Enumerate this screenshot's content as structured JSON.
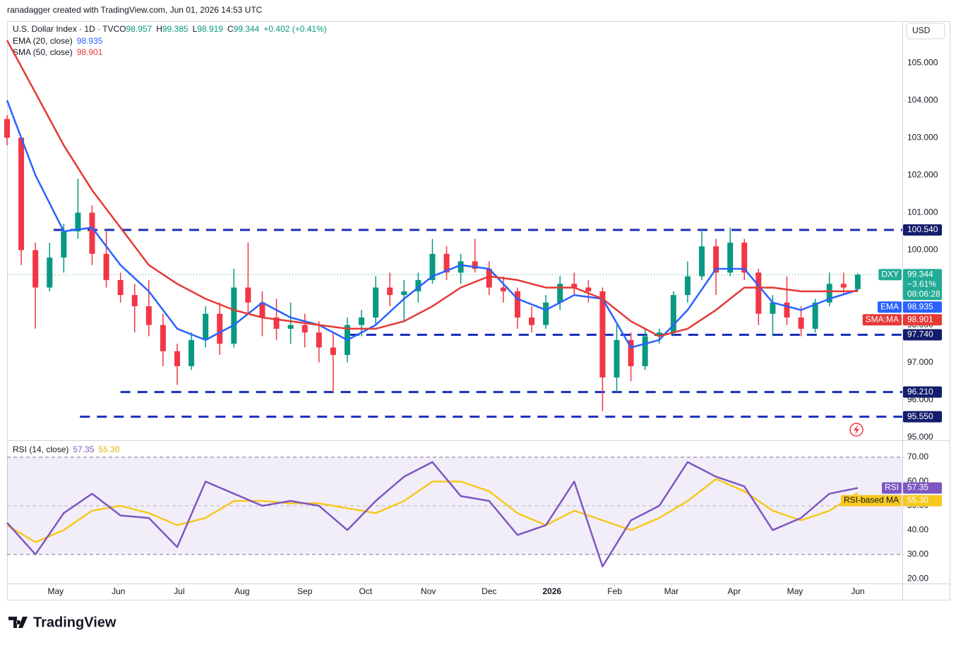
{
  "header": {
    "credit": "ranadagger created with TradingView.com, Jun 01, 2026 14:53 UTC",
    "currency": "USD",
    "brand": "TradingView"
  },
  "chart_data": [
    {
      "type": "candlestick",
      "title": "U.S. Dollar Index · 1D · TVC",
      "ohlc_legend": [
        {
          "key": "O",
          "value": "98.957"
        },
        {
          "key": "H",
          "value": "99.385"
        },
        {
          "key": "L",
          "value": "98.919"
        },
        {
          "key": "C",
          "value": "99.344"
        }
      ],
      "change": "+0.402 (+0.41%)",
      "up_color": "#089981",
      "down_color": "#f23645",
      "x": [
        0,
        7,
        14,
        21,
        28,
        35,
        42,
        49,
        56,
        63,
        70,
        77,
        84,
        91,
        98,
        105,
        112,
        119,
        126,
        133,
        140,
        147,
        154,
        161,
        168,
        175,
        182,
        189,
        196,
        203,
        210,
        217,
        224,
        231,
        238,
        245,
        252,
        259,
        266,
        273,
        280,
        287,
        294,
        301,
        308,
        315,
        322,
        329,
        336,
        343,
        350,
        357,
        364,
        371,
        378,
        385,
        392,
        399,
        406,
        413,
        420
      ],
      "open": [
        103.5,
        103.0,
        100.0,
        99.0,
        99.8,
        100.5,
        101.0,
        99.9,
        99.2,
        98.8,
        98.5,
        98.0,
        97.3,
        96.9,
        97.6,
        98.3,
        97.5,
        99.0,
        98.6,
        98.2,
        97.9,
        98.0,
        97.8,
        97.4,
        97.2,
        98.0,
        98.2,
        99.0,
        98.8,
        98.9,
        99.2,
        99.9,
        99.4,
        99.7,
        99.5,
        99.0,
        98.9,
        98.2,
        98.0,
        98.6,
        99.1,
        99.0,
        98.9,
        96.6,
        97.6,
        96.9,
        97.7,
        97.8,
        98.8,
        99.3,
        100.1,
        99.4,
        100.2,
        99.4,
        98.3,
        98.6,
        98.2,
        97.9,
        98.6,
        99.1,
        98.957
      ],
      "high": [
        103.6,
        103.0,
        100.2,
        100.2,
        100.7,
        101.9,
        101.2,
        100.5,
        99.4,
        99.1,
        99.2,
        98.3,
        97.5,
        97.8,
        98.5,
        98.6,
        99.5,
        100.2,
        98.9,
        98.7,
        98.6,
        98.3,
        98.1,
        97.8,
        98.2,
        98.4,
        99.3,
        99.4,
        99.2,
        99.4,
        100.3,
        100.1,
        99.9,
        100.3,
        99.7,
        99.3,
        99.0,
        98.5,
        98.8,
        99.3,
        99.4,
        99.2,
        99.0,
        98.0,
        97.8,
        97.9,
        97.9,
        98.9,
        99.7,
        100.5,
        100.3,
        100.6,
        100.3,
        99.5,
        98.8,
        99.3,
        98.5,
        98.7,
        99.4,
        99.4,
        99.385
      ],
      "low": [
        102.8,
        99.6,
        97.9,
        98.9,
        99.4,
        100.3,
        99.6,
        99.0,
        98.6,
        97.8,
        97.7,
        96.9,
        96.4,
        96.8,
        97.4,
        97.2,
        97.4,
        98.3,
        97.7,
        97.6,
        97.5,
        97.4,
        97.0,
        96.2,
        97.0,
        97.7,
        98.0,
        98.5,
        98.1,
        98.6,
        99.1,
        99.2,
        99.1,
        99.4,
        98.8,
        98.6,
        97.9,
        97.8,
        97.9,
        98.4,
        98.8,
        98.6,
        95.7,
        96.2,
        96.5,
        96.8,
        97.5,
        97.7,
        98.6,
        99.2,
        98.8,
        99.3,
        99.2,
        98.0,
        97.7,
        98.0,
        97.7,
        97.8,
        98.5,
        98.8,
        98.919
      ],
      "close": [
        103.0,
        100.0,
        99.0,
        99.8,
        100.5,
        101.0,
        99.9,
        99.2,
        98.8,
        98.5,
        98.0,
        97.3,
        96.9,
        97.6,
        98.3,
        97.5,
        99.0,
        98.6,
        98.2,
        97.9,
        98.0,
        97.8,
        97.4,
        97.2,
        98.0,
        98.2,
        99.0,
        98.8,
        98.9,
        99.2,
        99.9,
        99.4,
        99.7,
        99.5,
        99.0,
        98.9,
        98.2,
        98.0,
        98.6,
        99.1,
        99.0,
        98.9,
        96.6,
        97.6,
        96.9,
        97.7,
        97.8,
        98.8,
        99.3,
        100.1,
        99.4,
        100.2,
        99.4,
        98.3,
        98.6,
        98.2,
        97.9,
        98.6,
        99.1,
        99.0,
        99.344
      ],
      "last": {
        "name": "DXY",
        "value": 99.344,
        "change": "−3.61%",
        "timer": "08:06:28",
        "color": "#22ab94"
      },
      "series": [
        {
          "name": "EMA (20, close)",
          "tag": "EMA",
          "color": "#2962ff",
          "x": [
            0,
            14,
            28,
            42,
            56,
            70,
            84,
            98,
            112,
            126,
            140,
            154,
            168,
            182,
            196,
            210,
            224,
            238,
            252,
            266,
            280,
            294,
            308,
            322,
            336,
            350,
            364,
            378,
            392,
            406,
            420
          ],
          "values": [
            104.0,
            102.0,
            100.5,
            100.6,
            99.6,
            98.9,
            97.9,
            97.6,
            98.0,
            98.6,
            98.2,
            98.0,
            97.6,
            98.0,
            98.7,
            99.3,
            99.6,
            99.5,
            98.7,
            98.4,
            98.8,
            98.7,
            97.4,
            97.6,
            98.4,
            99.5,
            99.5,
            98.6,
            98.4,
            98.7,
            98.935
          ]
        },
        {
          "name": "SMA (50, close)",
          "tag": "SMA:MA",
          "color": "#e53935",
          "x": [
            0,
            14,
            28,
            42,
            56,
            70,
            84,
            98,
            112,
            126,
            140,
            154,
            168,
            182,
            196,
            210,
            224,
            238,
            252,
            266,
            280,
            294,
            308,
            322,
            336,
            350,
            364,
            378,
            392,
            406,
            420
          ],
          "values": [
            105.6,
            104.2,
            102.8,
            101.6,
            100.6,
            99.6,
            99.1,
            98.7,
            98.4,
            98.2,
            98.1,
            98.0,
            97.9,
            97.9,
            98.1,
            98.5,
            99.0,
            99.3,
            99.2,
            99.0,
            99.0,
            98.7,
            98.1,
            97.7,
            97.9,
            98.4,
            99.0,
            99.0,
            98.9,
            98.9,
            98.901
          ]
        }
      ],
      "levels": [
        {
          "value": 100.54,
          "label": "100.540",
          "x_start": 23
        },
        {
          "value": 97.74,
          "label": "97.740",
          "x_start": 169
        },
        {
          "value": 96.21,
          "label": "96.210",
          "x_start": 56
        },
        {
          "value": 95.55,
          "label": "95.550",
          "x_start": 36
        }
      ],
      "level_color": "#1a2fb8",
      "xlim": [
        0,
        442
      ],
      "xticks": [
        {
          "value": 24,
          "label": "May"
        },
        {
          "value": 55,
          "label": "Jun"
        },
        {
          "value": 85,
          "label": "Jul"
        },
        {
          "value": 116,
          "label": "Aug"
        },
        {
          "value": 147,
          "label": "Sep"
        },
        {
          "value": 177,
          "label": "Oct"
        },
        {
          "value": 208,
          "label": "Nov"
        },
        {
          "value": 238,
          "label": "Dec"
        },
        {
          "value": 269,
          "label": "2026"
        },
        {
          "value": 300,
          "label": "Feb"
        },
        {
          "value": 328,
          "label": "Mar"
        },
        {
          "value": 359,
          "label": "Apr"
        },
        {
          "value": 389,
          "label": "May"
        },
        {
          "value": 420,
          "label": "Jun"
        }
      ],
      "ylim": [
        94.96,
        106.0
      ],
      "yticks": [
        {
          "value": 95,
          "label": "95.000"
        },
        {
          "value": 96,
          "label": "96.000"
        },
        {
          "value": 97,
          "label": "97.000"
        },
        {
          "value": 98,
          "label": "98.000"
        },
        {
          "value": 99,
          "label": "99.000"
        },
        {
          "value": 100,
          "label": "100.000"
        },
        {
          "value": 101,
          "label": "101.000"
        },
        {
          "value": 102,
          "label": "102.000"
        },
        {
          "value": 103,
          "label": "103.000"
        },
        {
          "value": 104,
          "label": "104.000"
        },
        {
          "value": 105,
          "label": "105.000"
        }
      ]
    },
    {
      "type": "line",
      "title": "RSI (14, close)",
      "series": [
        {
          "name": "RSI",
          "tag": "RSI",
          "color": "#7e57c2",
          "x": [
            0,
            14,
            28,
            42,
            56,
            70,
            84,
            98,
            112,
            126,
            140,
            154,
            168,
            182,
            196,
            210,
            224,
            238,
            252,
            266,
            280,
            294,
            308,
            322,
            336,
            350,
            364,
            378,
            392,
            406,
            420
          ],
          "values": [
            43,
            30,
            47,
            55,
            46,
            45,
            33,
            60,
            55,
            50,
            52,
            50,
            40,
            52,
            62,
            68,
            54,
            52,
            38,
            42,
            60,
            25,
            44,
            50,
            68,
            62,
            58,
            40,
            45,
            55,
            57.35
          ],
          "last_label": "57.35"
        },
        {
          "name": "RSI-based MA",
          "tag": "RSI-based MA",
          "color": "#f7c81e",
          "x": [
            0,
            14,
            28,
            42,
            56,
            70,
            84,
            98,
            112,
            126,
            140,
            154,
            168,
            182,
            196,
            210,
            224,
            238,
            252,
            266,
            280,
            294,
            308,
            322,
            336,
            350,
            364,
            378,
            392,
            406,
            420
          ],
          "values": [
            42,
            35,
            40,
            48,
            50,
            47,
            42,
            45,
            52,
            52,
            51,
            51,
            49,
            47,
            52,
            60,
            60,
            56,
            47,
            42,
            48,
            44,
            40,
            45,
            52,
            61,
            56,
            48,
            44,
            48,
            55.3
          ],
          "last_label": "55.30"
        }
      ],
      "bands": [
        30,
        70
      ],
      "midline": 50,
      "xlim": [
        0,
        442
      ],
      "ylim": [
        18.3,
        76.4
      ],
      "yticks": [
        {
          "value": 20,
          "label": "20.00"
        },
        {
          "value": 30,
          "label": "30.00"
        },
        {
          "value": 40,
          "label": "40.00"
        },
        {
          "value": 50,
          "label": "50.00"
        },
        {
          "value": 60,
          "label": "60.00"
        },
        {
          "value": 70,
          "label": "70.00"
        }
      ]
    }
  ]
}
